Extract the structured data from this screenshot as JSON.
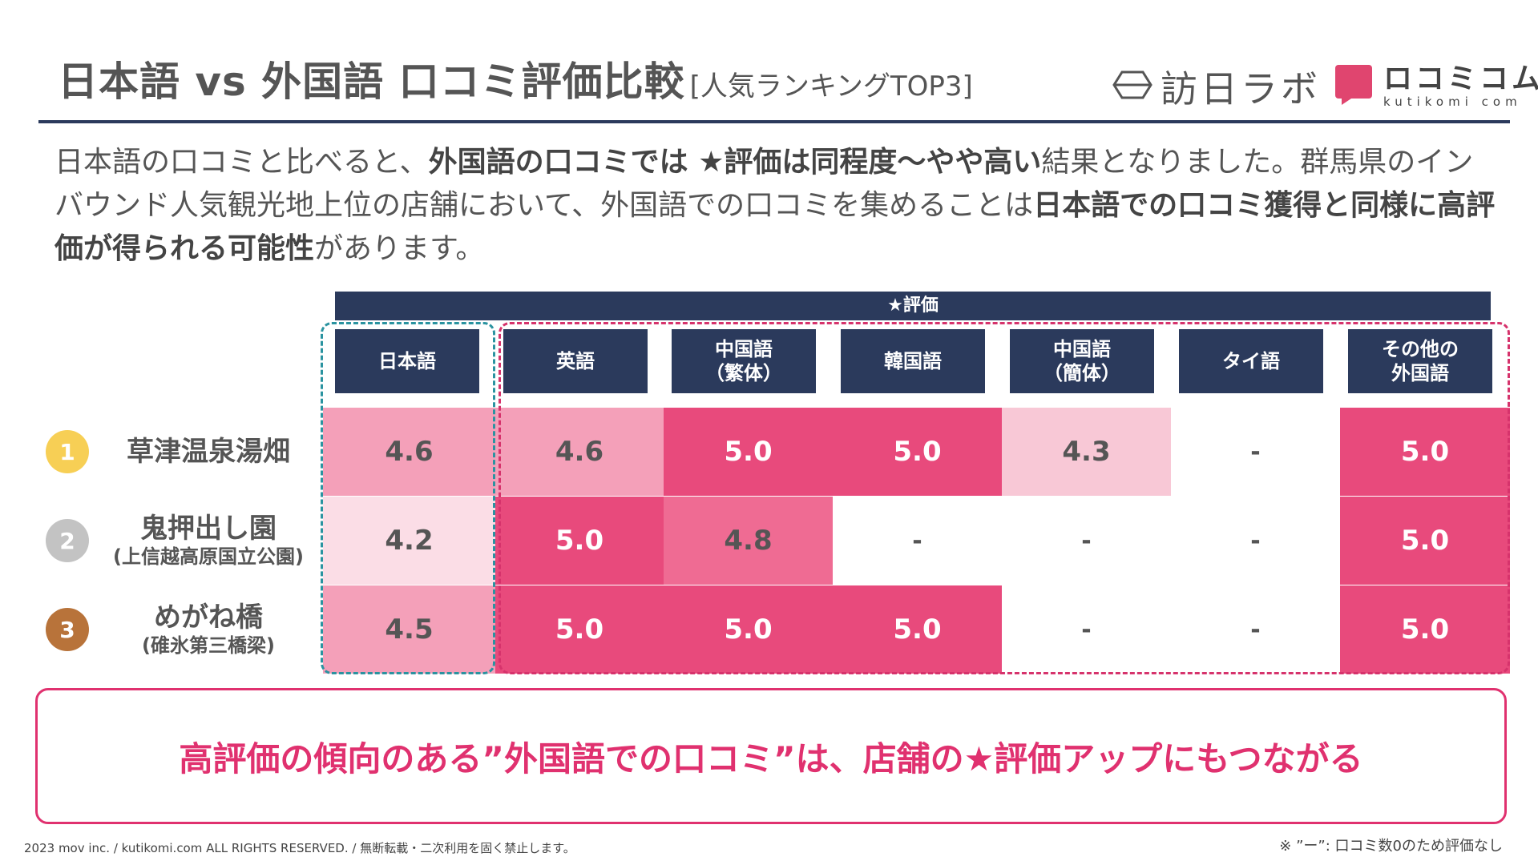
{
  "title": {
    "main": "日本語 vs 外国語 口コミ評価比較",
    "sub": "[人気ランキングTOP3]"
  },
  "logos": {
    "houjin": {
      "text": "訪日ラボ",
      "icon": "houjin-lab-logo-icon"
    },
    "kutikomi": {
      "text_jp": "ロコミコム",
      "text_en": "kutikomi com",
      "icon": "kutikomi-logo-icon"
    }
  },
  "intro": {
    "p1": "日本語の口コミと比べると、",
    "b1": "外国語の口コミでは ★評価は同程度～やや高い",
    "p2": "結果となりました。群馬県のインバウンド人気観光地上位の店舗において、外国語での口コミを集めることは",
    "b2": "日本語での口コミ獲得と同様に高評価が得られる可能性",
    "p3": "があります。"
  },
  "table": {
    "header": "★評価",
    "columns": [
      "日本語",
      "英語",
      "中国語\n（繁体）",
      "韓国語",
      "中国語\n（簡体）",
      "タイ語",
      "その他の\n外国語"
    ],
    "rows": [
      {
        "rank": "1",
        "name": "草津温泉湯畑",
        "sub": "",
        "values": [
          "4.6",
          "4.6",
          "5.0",
          "5.0",
          "4.3",
          "-",
          "5.0"
        ]
      },
      {
        "rank": "2",
        "name": "鬼押出し園",
        "sub": "(上信越高原国立公園)",
        "values": [
          "4.2",
          "5.0",
          "4.8",
          "-",
          "-",
          "-",
          "5.0"
        ]
      },
      {
        "rank": "3",
        "name": "めがね橋",
        "sub": "(碓氷第三橋梁)",
        "values": [
          "4.5",
          "5.0",
          "5.0",
          "5.0",
          "-",
          "-",
          "5.0"
        ]
      }
    ]
  },
  "colors": {
    "navy": "#2b3a5c",
    "pink_strong": "#e84a7c",
    "pink_mid": "#ef6b93",
    "pink_light": "#f4a0b9",
    "pink_pale": "#f8c8d6",
    "pink_faint": "#fbdde6",
    "teal_dash": "#2a93a0",
    "magenta_dash": "#d6336c",
    "accent": "#e0316f",
    "rank1": "#f7cf55",
    "rank2": "#c3c3c3",
    "rank3": "#b8733a"
  },
  "conclusion": "高評価の傾向のある”外国語での口コミ”は、店舗の★評価アップにもつながる",
  "footer": {
    "left": "2023 mov inc. / kutikomi.com ALL RIGHTS RESERVED. / 無断転載・二次利用を固く禁止します。",
    "right": "※ ”ー”: 口コミ数0のため評価なし"
  }
}
